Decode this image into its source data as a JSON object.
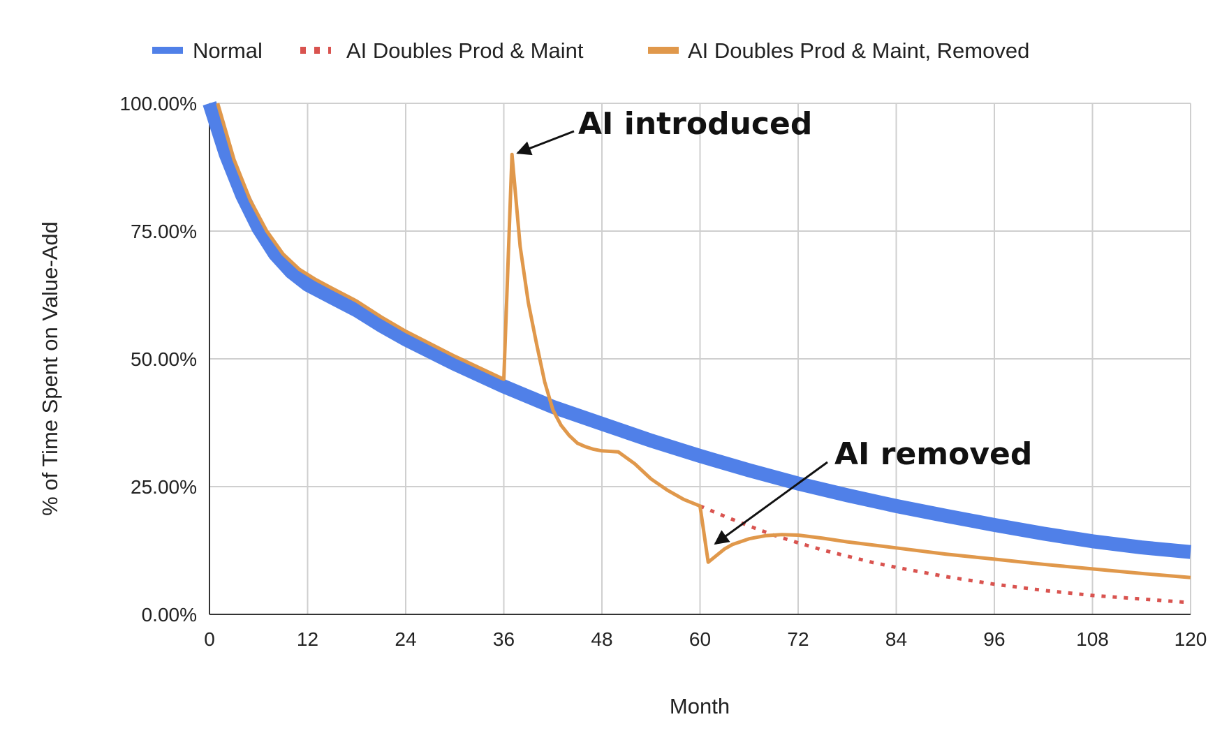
{
  "chart_data": {
    "type": "line",
    "xlabel": "Month",
    "ylabel": "% of Time Spent on Value-Add",
    "xlim": [
      0,
      120
    ],
    "ylim": [
      0,
      100
    ],
    "x_ticks": [
      "0",
      "12",
      "24",
      "36",
      "48",
      "60",
      "72",
      "84",
      "96",
      "108",
      "120"
    ],
    "y_ticks": [
      "0.00%",
      "25.00%",
      "50.00%",
      "75.00%",
      "100.00%"
    ],
    "grid": true,
    "legend_position": "top",
    "series": [
      {
        "name": "Normal",
        "color": "#5080e8",
        "style": "thick-solid",
        "x": [
          0,
          2,
          4,
          6,
          8,
          10,
          12,
          15,
          18,
          21,
          24,
          30,
          36,
          42,
          48,
          54,
          60,
          66,
          72,
          78,
          84,
          90,
          96,
          102,
          108,
          114,
          120
        ],
        "y": [
          100,
          90,
          82,
          75.5,
          70.5,
          67,
          64.5,
          62,
          59.5,
          56.5,
          53.8,
          49,
          44.6,
          40.6,
          37.3,
          34,
          31,
          28.2,
          25.6,
          23.3,
          21.2,
          19.3,
          17.5,
          15.8,
          14.3,
          13.1,
          12.2
        ]
      },
      {
        "name": "AI Doubles Prod & Maint",
        "color": "#d9534f",
        "style": "dotted",
        "x": [
          60,
          63,
          66,
          69,
          72,
          75,
          78,
          81,
          84,
          90,
          96,
          102,
          108,
          114,
          120
        ],
        "y": [
          21.2,
          19.2,
          17.3,
          15.5,
          14,
          12.6,
          11.4,
          10.2,
          9.2,
          7.4,
          5.9,
          4.7,
          3.7,
          3,
          2.3
        ]
      },
      {
        "name": "AI Doubles Prod & Maint, Removed",
        "color": "#e0984b",
        "style": "solid",
        "x": [
          1,
          3,
          5,
          7,
          9,
          11,
          13,
          15,
          18,
          21,
          24,
          30,
          36,
          37,
          38,
          39,
          40,
          41,
          42,
          43,
          44,
          45,
          46,
          47,
          48,
          50,
          52,
          54,
          56,
          58,
          60,
          61,
          62,
          63,
          64,
          66,
          68,
          70,
          72,
          75,
          78,
          84,
          90,
          96,
          102,
          108,
          114,
          120
        ],
        "y": [
          100,
          89,
          81,
          75,
          70.5,
          67.5,
          65.5,
          63.8,
          61.3,
          58.2,
          55.4,
          50.5,
          46,
          90,
          72,
          61,
          53,
          45.5,
          40,
          37,
          35,
          33.5,
          32.8,
          32.3,
          32,
          31.8,
          29.5,
          26.5,
          24.3,
          22.5,
          21.2,
          10.2,
          11.5,
          12.8,
          13.7,
          14.8,
          15.4,
          15.6,
          15.5,
          14.9,
          14.2,
          13,
          11.8,
          10.8,
          9.8,
          8.9,
          8,
          7.2
        ]
      }
    ],
    "annotations": [
      {
        "text": "AI introduced",
        "x": 37,
        "y": 90
      },
      {
        "text": "AI removed",
        "x": 61,
        "y": 14.5
      }
    ]
  }
}
